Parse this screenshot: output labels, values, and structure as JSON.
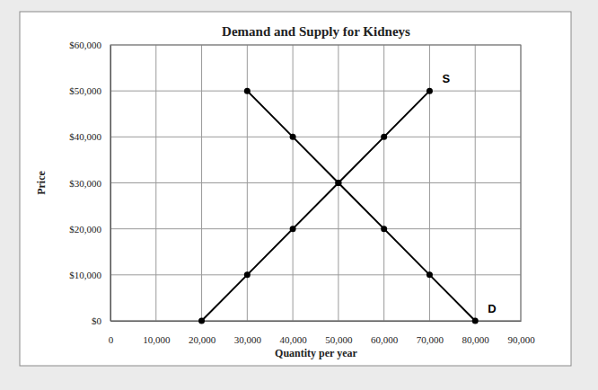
{
  "chart_data": {
    "type": "line",
    "title": "Demand and Supply for Kidneys",
    "x_label": "Quantity per year",
    "y_label": "Price",
    "x": [
      20000,
      30000,
      40000,
      50000,
      60000,
      70000,
      80000
    ],
    "series": [
      {
        "name": "S",
        "color": "#000000",
        "marker": "circle",
        "line_style": "solid",
        "values": [
          0,
          10000,
          20000,
          30000,
          40000,
          50000,
          null
        ]
      },
      {
        "name": "D",
        "color": "#000000",
        "marker": "circle",
        "line_style": "solid",
        "values": [
          null,
          50000,
          40000,
          30000,
          20000,
          10000,
          0
        ]
      }
    ],
    "xlim": [
      0,
      90000
    ],
    "xticks": [
      0,
      {
        "value": 10000,
        "label": "10,000"
      },
      {
        "value": 20000,
        "label": "20,000"
      },
      {
        "value": 30000,
        "label": "30,000"
      },
      {
        "value": 40000,
        "label": "40,000"
      },
      {
        "value": 50000,
        "label": "50,000"
      },
      {
        "value": 60000,
        "label": "60,000"
      },
      {
        "value": 70000,
        "label": "70,000"
      },
      {
        "value": 80000,
        "label": "80,000"
      },
      {
        "value": 90000,
        "label": "90,000"
      }
    ],
    "ylim": [
      0,
      60000
    ],
    "yticks": [
      {
        "value": 0,
        "label": "$0"
      },
      {
        "value": 10000,
        "label": "$10,000"
      },
      {
        "value": 20000,
        "label": "$20,000"
      },
      {
        "value": 30000,
        "label": "$30,000"
      },
      {
        "value": 40000,
        "label": "$40,000"
      },
      {
        "value": 50000,
        "label": "$50,000"
      },
      {
        "value": 60000,
        "label": "$60,000"
      }
    ],
    "grid": true
  }
}
